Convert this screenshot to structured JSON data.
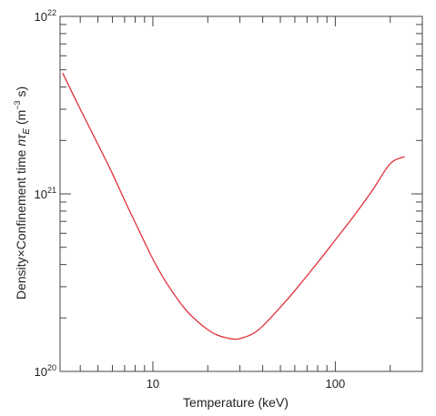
{
  "chart_data": {
    "type": "line",
    "title": "",
    "xlabel": "Temperature (keV)",
    "ylabel": {
      "prefix": "Density",
      "times": "×",
      "middle": "Confinement time ",
      "n": "n",
      "tau": "τ",
      "tau_sub": "E",
      "unit_open": " (m",
      "unit_exp": "−3",
      "unit_close": " s)"
    },
    "x_scale": "log",
    "y_scale": "log",
    "xlim": [
      3.1,
      300
    ],
    "ylim": [
      1e+20,
      1e+22
    ],
    "x_tick_labels": [
      {
        "value": 10,
        "label": "10"
      },
      {
        "value": 100,
        "label": "100"
      }
    ],
    "y_tick_labels": [
      {
        "value": 1e+20,
        "base": "10",
        "exp": "20"
      },
      {
        "value": 1e+21,
        "base": "10",
        "exp": "21"
      },
      {
        "value": 1e+22,
        "base": "10",
        "exp": "22"
      }
    ],
    "grid": false,
    "line_color": "#e0303a",
    "series": [
      {
        "x": [
          3.2,
          4,
          5,
          6,
          7,
          8,
          10,
          12,
          15,
          18,
          20,
          22,
          25,
          28,
          30,
          35,
          40,
          50,
          60,
          80,
          100,
          130,
          160,
          200,
          240
        ],
        "y": [
          4.8e+21,
          3e+21,
          1.9e+21,
          1.3e+21,
          9.2e+20,
          6.9e+20,
          4.3e+20,
          3.1e+20,
          2.25e+20,
          1.87e+20,
          1.72e+20,
          1.62e+20,
          1.55e+20,
          1.52e+20,
          1.53e+20,
          1.62e+20,
          1.8e+20,
          2.3e+20,
          2.85e+20,
          4.1e+20,
          5.5e+20,
          7.8e+20,
          1.05e+21,
          1.48e+21,
          1.62e+21
        ]
      }
    ]
  }
}
